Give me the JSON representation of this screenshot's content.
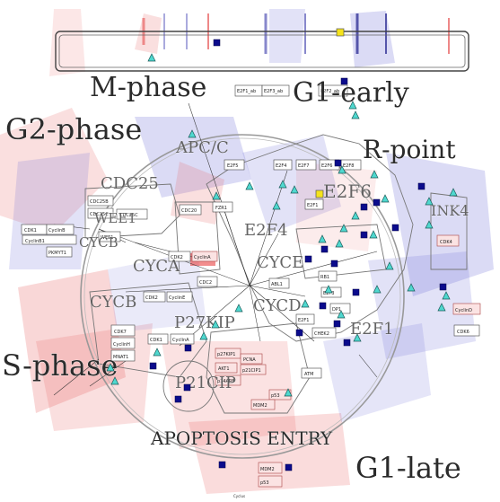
{
  "phases": {
    "m_phase": "M-phase",
    "g1_early": "G1-early",
    "g2_phase": "G2-phase",
    "r_point": "R-point",
    "s_phase": "S-phase",
    "g1_late": "G1-late",
    "apoptosis": "APOPTOSIS ENTRY"
  },
  "modules": [
    "APC/C",
    "CDC25",
    "WEE1",
    "CYCB",
    "CYCA",
    "CYCB",
    "E2F6",
    "E2F4",
    "INK4",
    "CYCE",
    "CYCD",
    "P27KIP",
    "P21CIP",
    "E2F1"
  ],
  "nodes": [
    "E2F1_ab",
    "E2F3_ab",
    "E2F2_ab",
    "E2F5",
    "E2F4",
    "E2F7",
    "E2F6",
    "E2F8",
    "E2F1",
    "CDC25B",
    "CDC25C",
    "CDC20",
    "FZR1",
    "CDK1",
    "CyclinB",
    "CyclinB1",
    "CDC25C",
    "WEE1",
    "PKMYT1",
    "CDK2",
    "CyclinA",
    "CDC2",
    "CDK2",
    "CyclinE",
    "CDK4",
    "CyclinD",
    "CDK6",
    "ABL1",
    "E2F1",
    "RB1",
    "DP1",
    "E2F3",
    "CDK7",
    "CyclinH",
    "MNAT1",
    "CDK1",
    "CyclinA",
    "p27KIP1",
    "AKT1",
    "PCNA",
    "p21CIP1",
    "p14ARF",
    "p53",
    "MDM2",
    "ATM",
    "CHEK2",
    "MDM2",
    "p53"
  ],
  "footer": {
    "label": "Cyclus"
  },
  "colors": {
    "marker_cyan": "#4fd8cf",
    "marker_navy": "#0b0b8c",
    "marker_yellow": "#f5e31b",
    "wash_red": "#e86060",
    "wash_blue": "#7070d8"
  }
}
